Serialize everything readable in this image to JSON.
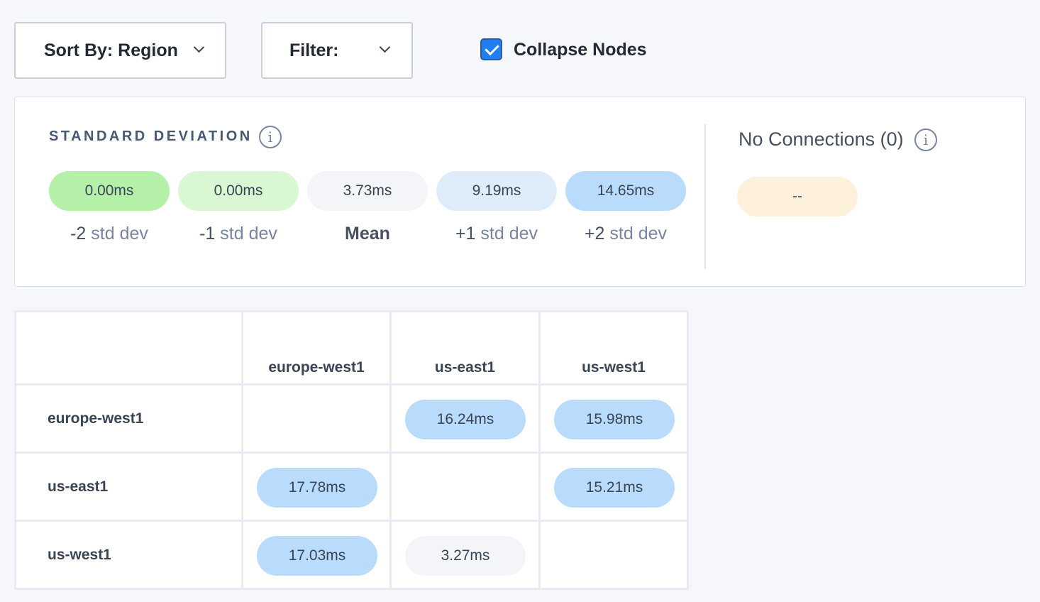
{
  "toolbar": {
    "sort_label": "Sort By: Region",
    "filter_label": "Filter:",
    "collapse_label": "Collapse Nodes",
    "collapse_checked": true
  },
  "stddev": {
    "title": "STANDARD DEVIATION",
    "items": [
      {
        "value": "0.00ms",
        "prefix": "-2",
        "suffix": " std dev",
        "color": "#b4f0a8"
      },
      {
        "value": "0.00ms",
        "prefix": "-1",
        "suffix": " std dev",
        "color": "#d9f7d3"
      },
      {
        "value": "3.73ms",
        "prefix": "Mean",
        "suffix": "",
        "color": "#f3f5f9"
      },
      {
        "value": "9.19ms",
        "prefix": "+1",
        "suffix": " std dev",
        "color": "#dfedfb"
      },
      {
        "value": "14.65ms",
        "prefix": "+2",
        "suffix": " std dev",
        "color": "#b9dcfc"
      }
    ]
  },
  "no_connections": {
    "label": "No Connections (0)",
    "value": "--",
    "color": "#fdf1dc"
  },
  "matrix": {
    "columns": [
      "europe-west1",
      "us-east1",
      "us-west1"
    ],
    "rows": [
      {
        "label": "europe-west1",
        "cells": [
          "",
          "16.24ms",
          "15.98ms"
        ],
        "colors": [
          "",
          "#b9dcfc",
          "#b9dcfc"
        ]
      },
      {
        "label": "us-east1",
        "cells": [
          "17.78ms",
          "",
          "15.21ms"
        ],
        "colors": [
          "#b9dcfc",
          "",
          "#b9dcfc"
        ]
      },
      {
        "label": "us-west1",
        "cells": [
          "17.03ms",
          "3.27ms",
          ""
        ],
        "colors": [
          "#b9dcfc",
          "#f3f5f9",
          ""
        ]
      }
    ]
  }
}
